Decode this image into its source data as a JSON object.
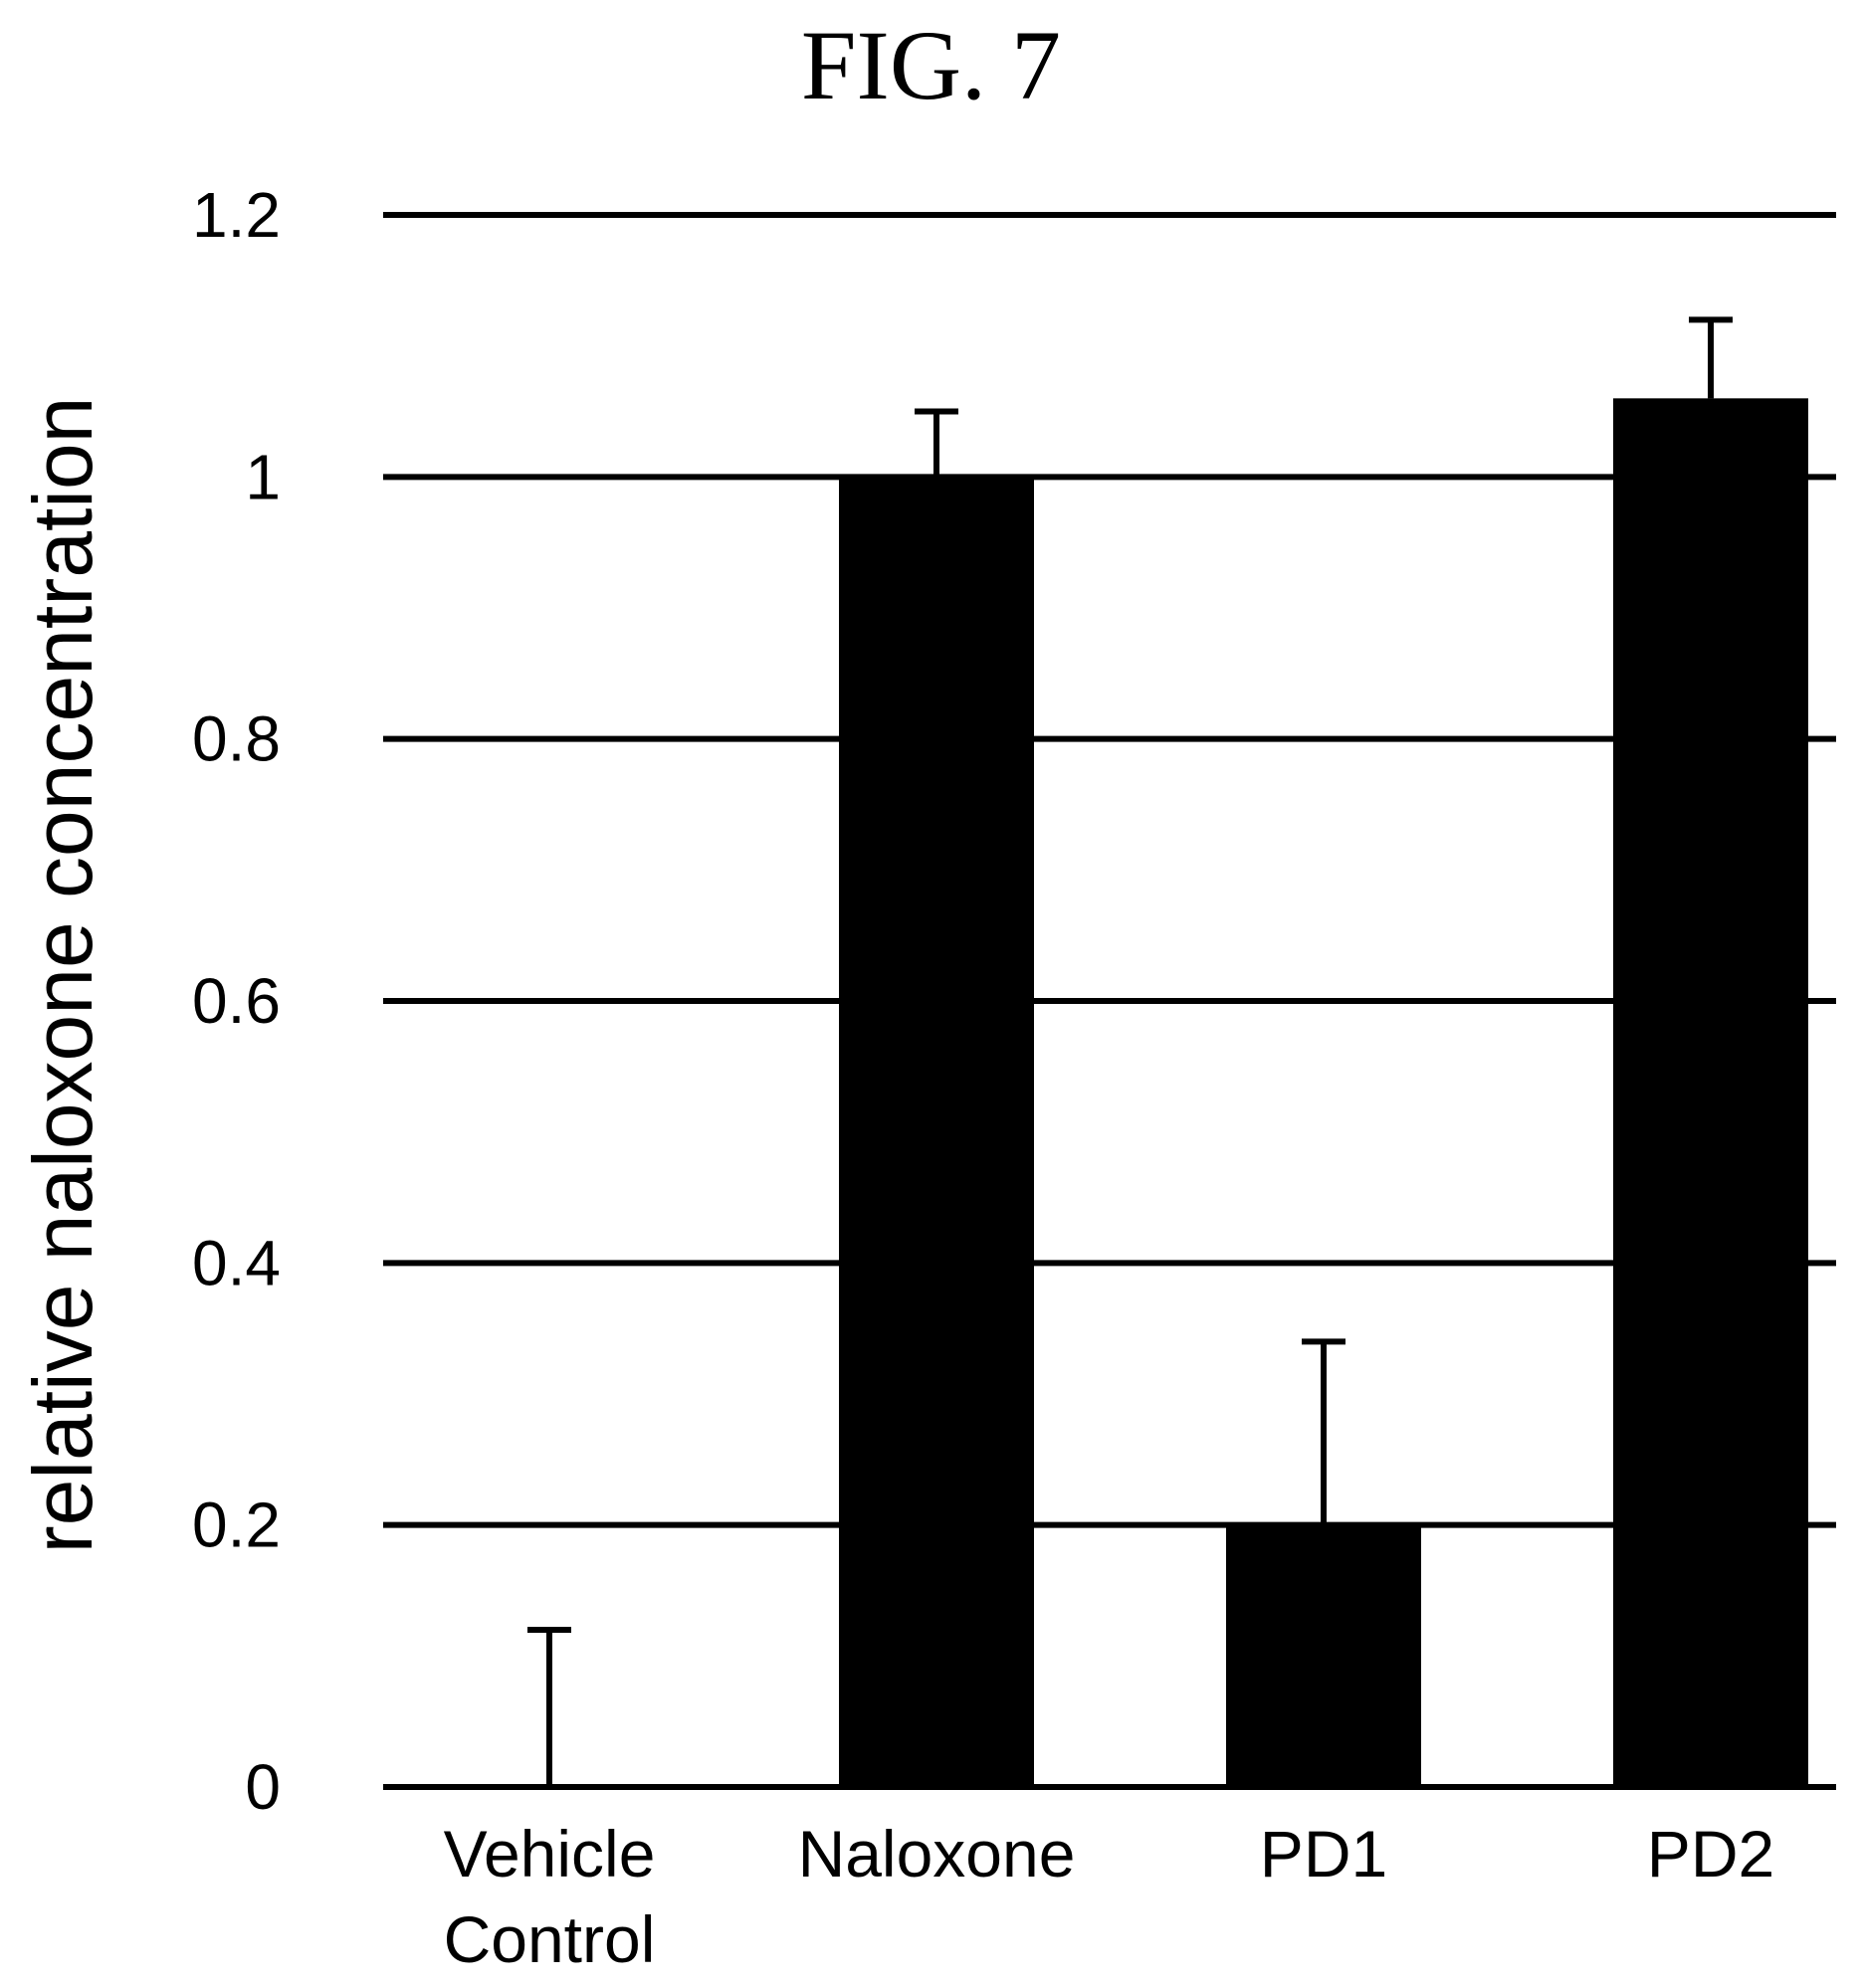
{
  "figure_label": "FIG. 7",
  "chart_data": {
    "type": "bar",
    "title": "",
    "ylabel": "relative naloxone concentration",
    "xlabel": "",
    "ylim": [
      0,
      1.2
    ],
    "yticks": [
      0,
      0.2,
      0.4,
      0.6,
      0.8,
      1,
      1.2
    ],
    "ytick_labels": [
      "0",
      "0.2",
      "0.4",
      "0.6",
      "0.8",
      "1",
      "1.2"
    ],
    "grid": true,
    "categories": [
      [
        "Vehicle",
        "Control"
      ],
      [
        "Naloxone"
      ],
      [
        "PD1"
      ],
      [
        "PD2"
      ]
    ],
    "values": [
      0,
      1.0,
      0.2,
      1.06
    ],
    "error_upper": [
      0.12,
      0.05,
      0.14,
      0.06
    ],
    "bar_color": "#000000"
  }
}
